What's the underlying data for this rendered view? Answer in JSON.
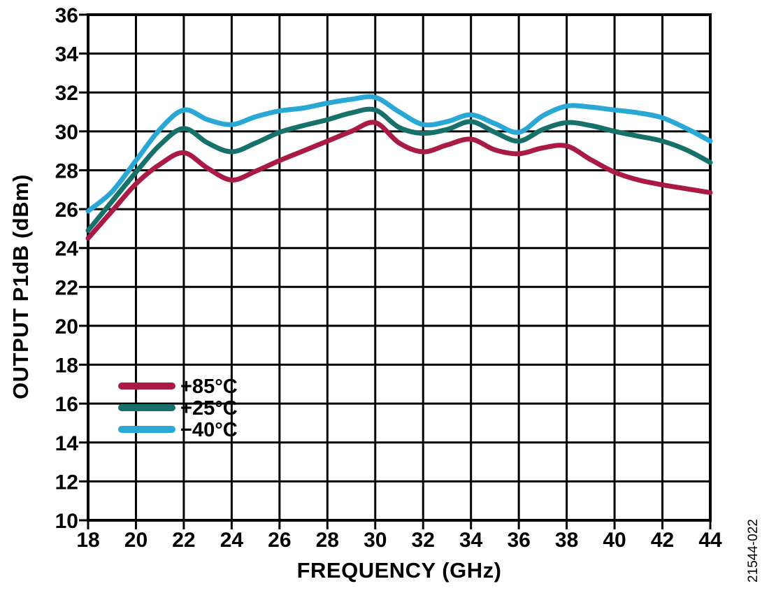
{
  "figure": {
    "watermark": "21544-022"
  },
  "chart_data": {
    "type": "line",
    "title": "",
    "xlabel": "FREQUENCY (GHz)",
    "ylabel": "OUTPUT P1dB (dBm)",
    "xlim": [
      18,
      44
    ],
    "ylim": [
      10,
      36
    ],
    "xticks": [
      18,
      20,
      22,
      24,
      26,
      28,
      30,
      32,
      34,
      36,
      38,
      40,
      42,
      44
    ],
    "yticks": [
      10,
      12,
      14,
      16,
      18,
      20,
      22,
      24,
      26,
      28,
      30,
      32,
      34,
      36
    ],
    "grid": true,
    "legend_position": "inside-left-middle",
    "axis_color": "#000000",
    "x": [
      18,
      19,
      20,
      21,
      22,
      23,
      24,
      25,
      26,
      27,
      28,
      29,
      30,
      31,
      32,
      33,
      34,
      35,
      36,
      37,
      38,
      39,
      40,
      41,
      42,
      43,
      44
    ],
    "series": [
      {
        "name": "+85°C",
        "color": "#A91B45",
        "values": [
          24.5,
          25.9,
          27.3,
          28.3,
          28.9,
          28.1,
          27.5,
          27.95,
          28.5,
          29.0,
          29.5,
          30.0,
          30.45,
          29.4,
          28.95,
          29.3,
          29.6,
          29.05,
          28.85,
          29.15,
          29.25,
          28.55,
          27.9,
          27.5,
          27.25,
          27.05,
          26.85
        ]
      },
      {
        "name": "+25°C",
        "color": "#17716B",
        "values": [
          24.9,
          26.4,
          27.9,
          29.3,
          30.15,
          29.4,
          28.95,
          29.4,
          29.95,
          30.3,
          30.6,
          30.95,
          31.1,
          30.2,
          29.9,
          30.1,
          30.5,
          29.95,
          29.5,
          30.1,
          30.45,
          30.3,
          30.0,
          29.75,
          29.5,
          29.05,
          28.4
        ]
      },
      {
        "name": "−40°C",
        "color": "#29A8D5",
        "values": [
          25.9,
          26.9,
          28.5,
          30.1,
          31.1,
          30.6,
          30.35,
          30.75,
          31.05,
          31.2,
          31.45,
          31.65,
          31.75,
          31.0,
          30.35,
          30.5,
          30.85,
          30.4,
          29.95,
          30.8,
          31.3,
          31.25,
          31.1,
          30.95,
          30.7,
          30.15,
          29.5
        ]
      }
    ]
  }
}
